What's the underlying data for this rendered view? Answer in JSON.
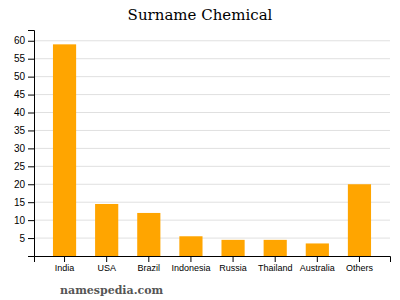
{
  "chart_data": {
    "type": "bar",
    "title": "Surname Chemical",
    "categories": [
      "India",
      "USA",
      "Brazil",
      "Indonesia",
      "Russia",
      "Thailand",
      "Australia",
      "Others"
    ],
    "values": [
      59,
      14.5,
      12,
      5.5,
      4.5,
      4.5,
      3.5,
      20
    ],
    "color": "#FFA500",
    "ylim": [
      0,
      63
    ],
    "yticks": [
      5,
      10,
      15,
      20,
      25,
      30,
      35,
      40,
      45,
      50,
      55,
      60
    ],
    "grid": true,
    "annotations": [
      "namespedia.com"
    ]
  }
}
